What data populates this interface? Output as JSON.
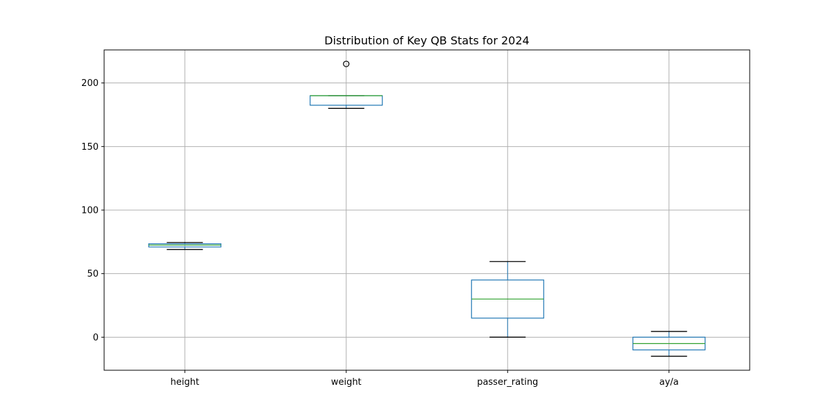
{
  "chart_data": {
    "type": "box",
    "title": "Distribution of Key QB Stats for 2024",
    "xlabel": "",
    "ylabel": "",
    "ylim": [
      -26,
      226
    ],
    "yticks": [
      0,
      50,
      100,
      150,
      200
    ],
    "grid": true,
    "categories": [
      "height",
      "weight",
      "passer_rating",
      "ay/a"
    ],
    "boxes": [
      {
        "category": "height",
        "whisker_low": 69,
        "q1": 71,
        "median": 72.5,
        "q3": 73.5,
        "whisker_high": 74.5,
        "outliers": []
      },
      {
        "category": "weight",
        "whisker_low": 180,
        "q1": 182.5,
        "median": 190,
        "q3": 190,
        "whisker_high": 190,
        "outliers": [
          215
        ]
      },
      {
        "category": "passer_rating",
        "whisker_low": 0,
        "q1": 15,
        "median": 30,
        "q3": 45,
        "whisker_high": 59.5,
        "outliers": []
      },
      {
        "category": "ay/a",
        "whisker_low": -15,
        "q1": -10,
        "median": -5,
        "q3": 0,
        "whisker_high": 4.5,
        "outliers": []
      }
    ],
    "colors": {
      "box": "#1f77b4",
      "median": "#2ca02c",
      "whisker": "#000000",
      "grid": "#b0b0b0"
    }
  }
}
